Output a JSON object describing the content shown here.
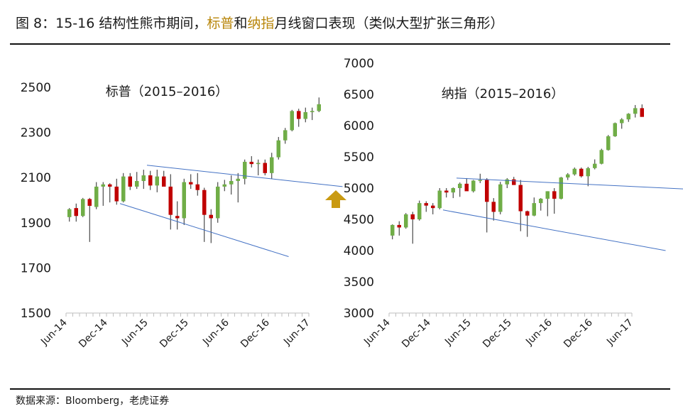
{
  "figure": {
    "title_prefix": "图 8：15-16 结构性熊市期间，",
    "title_hl1": "标普",
    "title_mid": "和",
    "title_hl2": "纳指",
    "title_suffix": "月线窗口表现（类似大型扩张三角形）",
    "source": "数据来源：Bloomberg，老虎证券",
    "colors": {
      "up": "#70ad47",
      "down": "#c00000",
      "wick": "#262626",
      "trend": "#4472c4",
      "arrow": "#c99a12",
      "highlight": "#b8860b"
    }
  },
  "chart_data": [
    {
      "type": "candlestick",
      "title": "标普（2015–2016）",
      "xlabel": "",
      "ylabel": "",
      "ylim": [
        1500,
        2500
      ],
      "yticks": [
        1500,
        1700,
        1900,
        2100,
        2300,
        2500
      ],
      "xticks": [
        "Jun-14",
        "Dec-14",
        "Jun-15",
        "Dec-15",
        "Jun-16",
        "Dec-16",
        "Jun-17"
      ],
      "start_month": "2014-06",
      "candles": [
        {
          "o": 1925,
          "h": 1965,
          "l": 1905,
          "c": 1960
        },
        {
          "o": 1965,
          "h": 1985,
          "l": 1905,
          "c": 1930
        },
        {
          "o": 1930,
          "h": 2010,
          "l": 1925,
          "c": 2005
        },
        {
          "o": 2005,
          "h": 2010,
          "l": 1815,
          "c": 1975
        },
        {
          "o": 1970,
          "h": 2080,
          "l": 1960,
          "c": 2060
        },
        {
          "o": 2060,
          "h": 2080,
          "l": 1975,
          "c": 2070
        },
        {
          "o": 2070,
          "h": 2075,
          "l": 1990,
          "c": 2060
        },
        {
          "o": 2060,
          "h": 2095,
          "l": 1980,
          "c": 1995
        },
        {
          "o": 1995,
          "h": 2120,
          "l": 1990,
          "c": 2105
        },
        {
          "o": 2105,
          "h": 2120,
          "l": 2045,
          "c": 2060
        },
        {
          "o": 2060,
          "h": 2125,
          "l": 2050,
          "c": 2085
        },
        {
          "o": 2085,
          "h": 2135,
          "l": 2050,
          "c": 2110
        },
        {
          "o": 2110,
          "h": 2130,
          "l": 2045,
          "c": 2065
        },
        {
          "o": 2065,
          "h": 2135,
          "l": 2035,
          "c": 2105
        },
        {
          "o": 2105,
          "h": 2130,
          "l": 2070,
          "c": 2060
        },
        {
          "o": 2060,
          "h": 2115,
          "l": 1870,
          "c": 1935
        },
        {
          "o": 1930,
          "h": 1995,
          "l": 1870,
          "c": 1920
        },
        {
          "o": 1920,
          "h": 2095,
          "l": 1890,
          "c": 2080
        },
        {
          "o": 2080,
          "h": 2115,
          "l": 2050,
          "c": 2070
        },
        {
          "o": 2070,
          "h": 2120,
          "l": 2020,
          "c": 2045
        },
        {
          "o": 2045,
          "h": 2055,
          "l": 1815,
          "c": 1935
        },
        {
          "o": 1935,
          "h": 1960,
          "l": 1810,
          "c": 1920
        },
        {
          "o": 1920,
          "h": 2080,
          "l": 1900,
          "c": 2060
        },
        {
          "o": 2060,
          "h": 2090,
          "l": 2040,
          "c": 2070
        },
        {
          "o": 2070,
          "h": 2110,
          "l": 2025,
          "c": 2085
        },
        {
          "o": 2085,
          "h": 2120,
          "l": 1990,
          "c": 2095
        },
        {
          "o": 2095,
          "h": 2180,
          "l": 2070,
          "c": 2170
        },
        {
          "o": 2170,
          "h": 2195,
          "l": 2145,
          "c": 2160
        },
        {
          "o": 2160,
          "h": 2180,
          "l": 2110,
          "c": 2165
        },
        {
          "o": 2165,
          "h": 2180,
          "l": 2110,
          "c": 2120
        },
        {
          "o": 2120,
          "h": 2210,
          "l": 2095,
          "c": 2190
        },
        {
          "o": 2190,
          "h": 2280,
          "l": 2180,
          "c": 2265
        },
        {
          "o": 2265,
          "h": 2320,
          "l": 2250,
          "c": 2310
        },
        {
          "o": 2310,
          "h": 2400,
          "l": 2305,
          "c": 2395
        },
        {
          "o": 2395,
          "h": 2405,
          "l": 2325,
          "c": 2360
        },
        {
          "o": 2360,
          "h": 2410,
          "l": 2345,
          "c": 2390
        },
        {
          "o": 2390,
          "h": 2410,
          "l": 2355,
          "c": 2395
        },
        {
          "o": 2395,
          "h": 2455,
          "l": 2390,
          "c": 2425
        }
      ],
      "trendlines": [
        {
          "x1": 12,
          "y1": 2155,
          "x2": 41,
          "y2": 2060
        },
        {
          "x1": 8,
          "y1": 1985,
          "x2": 33,
          "y2": 1750
        }
      ],
      "arrow": {
        "x": 40,
        "y": 2000
      }
    },
    {
      "type": "candlestick",
      "title": "纳指（2015–2016）",
      "xlabel": "",
      "ylabel": "",
      "ylim": [
        3000,
        7000
      ],
      "yticks": [
        3000,
        3500,
        4000,
        4500,
        5000,
        5500,
        6000,
        6500,
        7000
      ],
      "xticks": [
        "Jun-14",
        "Dec-14",
        "Jun-15",
        "Dec-15",
        "Jun-16",
        "Dec-16",
        "Jun-17"
      ],
      "start_month": "2014-06",
      "candles": [
        {
          "o": 4240,
          "h": 4420,
          "l": 4180,
          "c": 4410
        },
        {
          "o": 4410,
          "h": 4470,
          "l": 4240,
          "c": 4370
        },
        {
          "o": 4370,
          "h": 4600,
          "l": 4350,
          "c": 4580
        },
        {
          "o": 4580,
          "h": 4620,
          "l": 4110,
          "c": 4500
        },
        {
          "o": 4500,
          "h": 4800,
          "l": 4480,
          "c": 4760
        },
        {
          "o": 4760,
          "h": 4790,
          "l": 4620,
          "c": 4720
        },
        {
          "o": 4720,
          "h": 4760,
          "l": 4580,
          "c": 4680
        },
        {
          "o": 4680,
          "h": 5000,
          "l": 4660,
          "c": 4960
        },
        {
          "o": 4960,
          "h": 5000,
          "l": 4850,
          "c": 4930
        },
        {
          "o": 4930,
          "h": 5010,
          "l": 4840,
          "c": 5000
        },
        {
          "o": 5000,
          "h": 5090,
          "l": 4860,
          "c": 5070
        },
        {
          "o": 5070,
          "h": 5160,
          "l": 4980,
          "c": 4950
        },
        {
          "o": 4950,
          "h": 5130,
          "l": 4930,
          "c": 5120
        },
        {
          "o": 5120,
          "h": 5230,
          "l": 5080,
          "c": 5130
        },
        {
          "o": 5130,
          "h": 5160,
          "l": 4290,
          "c": 4780
        },
        {
          "o": 4780,
          "h": 4840,
          "l": 4480,
          "c": 4620
        },
        {
          "o": 4620,
          "h": 5100,
          "l": 4580,
          "c": 5060
        },
        {
          "o": 5060,
          "h": 5160,
          "l": 5000,
          "c": 5140
        },
        {
          "o": 5140,
          "h": 5180,
          "l": 5050,
          "c": 5050
        },
        {
          "o": 5050,
          "h": 5130,
          "l": 4310,
          "c": 4630
        },
        {
          "o": 4630,
          "h": 4640,
          "l": 4220,
          "c": 4560
        },
        {
          "o": 4560,
          "h": 4850,
          "l": 4550,
          "c": 4760
        },
        {
          "o": 4760,
          "h": 4840,
          "l": 4640,
          "c": 4830
        },
        {
          "o": 4830,
          "h": 4950,
          "l": 4550,
          "c": 4950
        },
        {
          "o": 4950,
          "h": 5000,
          "l": 4590,
          "c": 4830
        },
        {
          "o": 4830,
          "h": 5180,
          "l": 4820,
          "c": 5170
        },
        {
          "o": 5170,
          "h": 5240,
          "l": 5130,
          "c": 5220
        },
        {
          "o": 5220,
          "h": 5330,
          "l": 5200,
          "c": 5310
        },
        {
          "o": 5310,
          "h": 5330,
          "l": 5170,
          "c": 5190
        },
        {
          "o": 5190,
          "h": 5340,
          "l": 5030,
          "c": 5320
        },
        {
          "o": 5320,
          "h": 5460,
          "l": 5300,
          "c": 5390
        },
        {
          "o": 5390,
          "h": 5630,
          "l": 5380,
          "c": 5610
        },
        {
          "o": 5610,
          "h": 5850,
          "l": 5600,
          "c": 5830
        },
        {
          "o": 5830,
          "h": 6050,
          "l": 5820,
          "c": 6040
        },
        {
          "o": 6040,
          "h": 6120,
          "l": 5950,
          "c": 6100
        },
        {
          "o": 6100,
          "h": 6200,
          "l": 6060,
          "c": 6190
        },
        {
          "o": 6190,
          "h": 6330,
          "l": 6130,
          "c": 6280
        },
        {
          "o": 6280,
          "h": 6340,
          "l": 6150,
          "c": 6140
        }
      ],
      "trendlines": [
        {
          "x1": 10,
          "y1": 5160,
          "x2": 45,
          "y2": 4980
        },
        {
          "x1": 8,
          "y1": 4650,
          "x2": 41,
          "y2": 4000
        }
      ],
      "arrow": {
        "x": 47,
        "y": 4800
      }
    }
  ]
}
